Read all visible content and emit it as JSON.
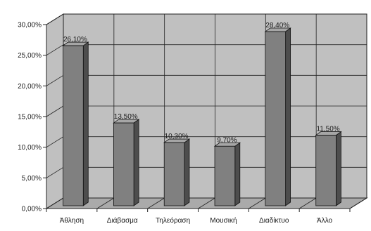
{
  "chart_data": {
    "type": "bar",
    "categories": [
      "Άθληση",
      "Διάβασμα",
      "Τηλεόραση",
      "Μουσική",
      "Διαδίκτυο",
      "Άλλο"
    ],
    "values": [
      26.1,
      13.5,
      10.3,
      9.7,
      28.4,
      11.5
    ],
    "data_labels": [
      "26,10%",
      "13,50%",
      "10,30%",
      "9,70%",
      "28,40%",
      "11,50%"
    ],
    "y_ticks": [
      0,
      5,
      10,
      15,
      20,
      25,
      30
    ],
    "y_tick_labels": [
      "0,00%",
      "5,00%",
      "10,00%",
      "15,00%",
      "20,00%",
      "25,00%",
      "30,00%"
    ],
    "ylim": [
      0,
      30
    ],
    "grid": true,
    "style": "3d-column",
    "colors": {
      "bar_front": "#808080",
      "bar_side": "#4d4d4d",
      "bar_top": "#a6a6a6",
      "wall": "#c0c0c0",
      "floor": "#aaaaaa",
      "grid": "#222222"
    }
  }
}
